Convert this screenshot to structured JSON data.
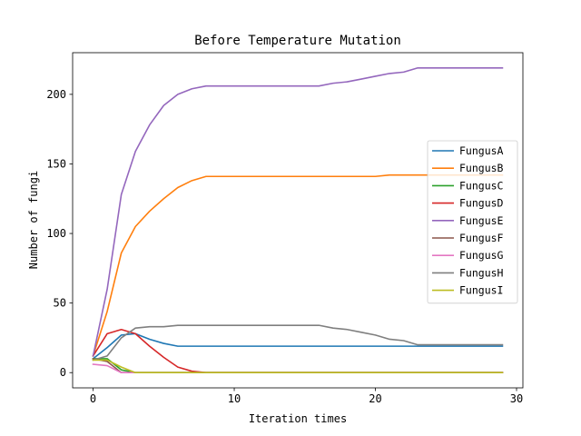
{
  "chart_data": {
    "type": "line",
    "title": "Before Temperature Mutation",
    "xlabel": "Iteration times",
    "ylabel": "Number of fungi",
    "xlim": [
      -1.45,
      30.45
    ],
    "ylim": [
      -10.95,
      229.95
    ],
    "xticks": [
      0,
      10,
      20,
      30
    ],
    "yticks": [
      0,
      50,
      100,
      150,
      200
    ],
    "grid": false,
    "legend_position": "center-right",
    "x": [
      0,
      1,
      2,
      3,
      4,
      5,
      6,
      7,
      8,
      9,
      10,
      11,
      12,
      13,
      14,
      15,
      16,
      17,
      18,
      19,
      20,
      21,
      22,
      23,
      24,
      25,
      26,
      27,
      28,
      29
    ],
    "series": [
      {
        "name": "FungusA",
        "color": "#1f77b4",
        "values": [
          10,
          18,
          27,
          28,
          24,
          21,
          19,
          19,
          19,
          19,
          19,
          19,
          19,
          19,
          19,
          19,
          19,
          19,
          19,
          19,
          19,
          19,
          19,
          19,
          19,
          19,
          19,
          19,
          19,
          19
        ]
      },
      {
        "name": "FungusB",
        "color": "#ff7f0e",
        "values": [
          12,
          44,
          86,
          105,
          116,
          125,
          133,
          138,
          141,
          141,
          141,
          141,
          141,
          141,
          141,
          141,
          141,
          141,
          141,
          141,
          141,
          142,
          142,
          142,
          142,
          142,
          142,
          142,
          142,
          142
        ]
      },
      {
        "name": "FungusC",
        "color": "#2ca02c",
        "values": [
          10,
          10,
          2,
          0,
          0,
          0,
          0,
          0,
          0,
          0,
          0,
          0,
          0,
          0,
          0,
          0,
          0,
          0,
          0,
          0,
          0,
          0,
          0,
          0,
          0,
          0,
          0,
          0,
          0,
          0
        ]
      },
      {
        "name": "FungusD",
        "color": "#d62728",
        "values": [
          12,
          28,
          31,
          28,
          19,
          11,
          4,
          1,
          0,
          0,
          0,
          0,
          0,
          0,
          0,
          0,
          0,
          0,
          0,
          0,
          0,
          0,
          0,
          0,
          0,
          0,
          0,
          0,
          0,
          0
        ]
      },
      {
        "name": "FungusE",
        "color": "#9467bd",
        "values": [
          12,
          60,
          128,
          159,
          178,
          192,
          200,
          204,
          206,
          206,
          206,
          206,
          206,
          206,
          206,
          206,
          206,
          208,
          209,
          211,
          213,
          215,
          216,
          219,
          219,
          219,
          219,
          219,
          219,
          219
        ]
      },
      {
        "name": "FungusF",
        "color": "#8c564b",
        "values": [
          10,
          8,
          0,
          0,
          0,
          0,
          0,
          0,
          0,
          0,
          0,
          0,
          0,
          0,
          0,
          0,
          0,
          0,
          0,
          0,
          0,
          0,
          0,
          0,
          0,
          0,
          0,
          0,
          0,
          0
        ]
      },
      {
        "name": "FungusG",
        "color": "#e377c2",
        "values": [
          6,
          5,
          0,
          0,
          0,
          0,
          0,
          0,
          0,
          0,
          0,
          0,
          0,
          0,
          0,
          0,
          0,
          0,
          0,
          0,
          0,
          0,
          0,
          0,
          0,
          0,
          0,
          0,
          0,
          0
        ]
      },
      {
        "name": "FungusH",
        "color": "#7f7f7f",
        "values": [
          9,
          12,
          25,
          32,
          33,
          33,
          34,
          34,
          34,
          34,
          34,
          34,
          34,
          34,
          34,
          34,
          34,
          32,
          31,
          29,
          27,
          24,
          23,
          20,
          20,
          20,
          20,
          20,
          20,
          20
        ]
      },
      {
        "name": "FungusI",
        "color": "#bcbd22",
        "values": [
          9,
          9,
          4,
          0,
          0,
          0,
          0,
          0,
          0,
          0,
          0,
          0,
          0,
          0,
          0,
          0,
          0,
          0,
          0,
          0,
          0,
          0,
          0,
          0,
          0,
          0,
          0,
          0,
          0,
          0
        ]
      }
    ]
  }
}
